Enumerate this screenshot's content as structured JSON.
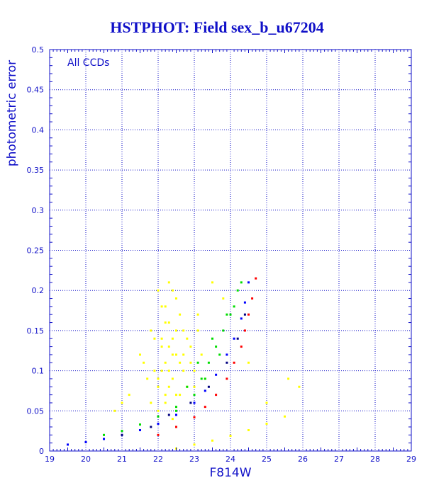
{
  "title": "HSTPHOT: Field sex_b_u67204",
  "colors": {
    "axis": "#1010c8",
    "grid": "#1010c8",
    "title": "#1010c8",
    "yellow": "#ffff00",
    "green": "#00dd00",
    "blue": "#0000ff",
    "red": "#ff0000",
    "navy": "#000080"
  },
  "chart_data": {
    "type": "scatter",
    "title": "HSTPHOT: Field sex_b_u67204",
    "xlabel": "F814W",
    "ylabel": "photometric error",
    "annotation": "All CCDs",
    "xlim": [
      19,
      29
    ],
    "ylim": [
      0,
      0.5
    ],
    "x_ticks": [
      "19",
      "20",
      "21",
      "22",
      "23",
      "24",
      "25",
      "26",
      "27",
      "28",
      "29"
    ],
    "y_ticks": [
      "0",
      "0.05",
      "0.1",
      "0.15",
      "0.2",
      "0.25",
      "0.3",
      "0.35",
      "0.4",
      "0.45",
      "0.5"
    ],
    "grid": true,
    "series": [
      {
        "color": "yellow",
        "x": [
          21.5,
          21.7,
          21.8,
          21.9,
          22.0,
          22.0,
          22.1,
          22.1,
          22.2,
          22.2,
          22.3,
          22.3,
          22.4,
          22.4,
          22.5,
          22.5,
          22.6,
          22.7,
          22.8,
          22.9,
          23.0,
          23.1,
          23.2,
          23.3,
          22.0,
          22.2,
          22.4,
          22.1,
          22.3,
          22.6,
          21.8,
          22.5,
          22.7,
          22.2,
          22.4,
          21.6,
          22.8,
          23.0,
          22.1,
          22.3,
          22.5,
          22.9,
          22.0,
          22.6,
          22.2,
          21.9,
          22.4,
          23.1,
          22.7,
          22.3,
          21.2,
          21.0,
          20.8,
          23.5,
          23.8,
          24.5,
          25.0,
          25.6,
          25.9,
          22.5,
          23.0,
          23.5,
          24.0,
          24.5,
          25.0,
          25.5
        ],
        "y": [
          0.12,
          0.09,
          0.15,
          0.1,
          0.2,
          0.08,
          0.13,
          0.18,
          0.11,
          0.07,
          0.16,
          0.1,
          0.14,
          0.09,
          0.12,
          0.19,
          0.11,
          0.15,
          0.08,
          0.13,
          0.1,
          0.17,
          0.12,
          0.09,
          0.05,
          0.06,
          0.04,
          0.14,
          0.21,
          0.17,
          0.06,
          0.07,
          0.1,
          0.16,
          0.12,
          0.11,
          0.14,
          0.08,
          0.1,
          0.13,
          0.15,
          0.11,
          0.09,
          0.07,
          0.18,
          0.14,
          0.2,
          0.15,
          0.12,
          0.08,
          0.07,
          0.06,
          0.05,
          0.21,
          0.19,
          0.11,
          0.06,
          0.09,
          0.08,
          0.003,
          0.008,
          0.013,
          0.019,
          0.026,
          0.034,
          0.043
        ]
      },
      {
        "color": "green",
        "x": [
          20.5,
          21.0,
          21.5,
          22.0,
          22.5,
          23.0,
          23.2,
          23.4,
          23.6,
          23.8,
          24.0,
          24.1,
          24.2,
          22.8,
          23.1,
          23.5,
          23.9,
          24.3,
          22.5,
          23.3,
          23.7
        ],
        "y": [
          0.02,
          0.025,
          0.033,
          0.043,
          0.055,
          0.07,
          0.09,
          0.11,
          0.13,
          0.15,
          0.17,
          0.18,
          0.2,
          0.08,
          0.11,
          0.14,
          0.17,
          0.21,
          0.05,
          0.09,
          0.12
        ]
      },
      {
        "color": "blue",
        "x": [
          19.5,
          20.0,
          20.5,
          21.0,
          21.5,
          22.0,
          22.5,
          23.0,
          23.3,
          23.6,
          23.9,
          24.1,
          24.3,
          24.4,
          24.5
        ],
        "y": [
          0.008,
          0.011,
          0.015,
          0.02,
          0.026,
          0.034,
          0.045,
          0.06,
          0.075,
          0.095,
          0.12,
          0.14,
          0.165,
          0.185,
          0.21
        ]
      },
      {
        "color": "red",
        "x": [
          22.0,
          22.5,
          23.0,
          23.3,
          23.6,
          23.9,
          24.1,
          24.3,
          24.4,
          24.5,
          24.6,
          24.7
        ],
        "y": [
          0.02,
          0.03,
          0.042,
          0.055,
          0.07,
          0.09,
          0.11,
          0.13,
          0.15,
          0.17,
          0.19,
          0.215
        ]
      },
      {
        "color": "navy",
        "x": [
          21.0,
          21.8,
          22.3,
          22.9,
          23.4,
          23.9,
          24.2,
          24.4
        ],
        "y": [
          0.02,
          0.03,
          0.045,
          0.06,
          0.08,
          0.11,
          0.14,
          0.17
        ]
      }
    ]
  }
}
